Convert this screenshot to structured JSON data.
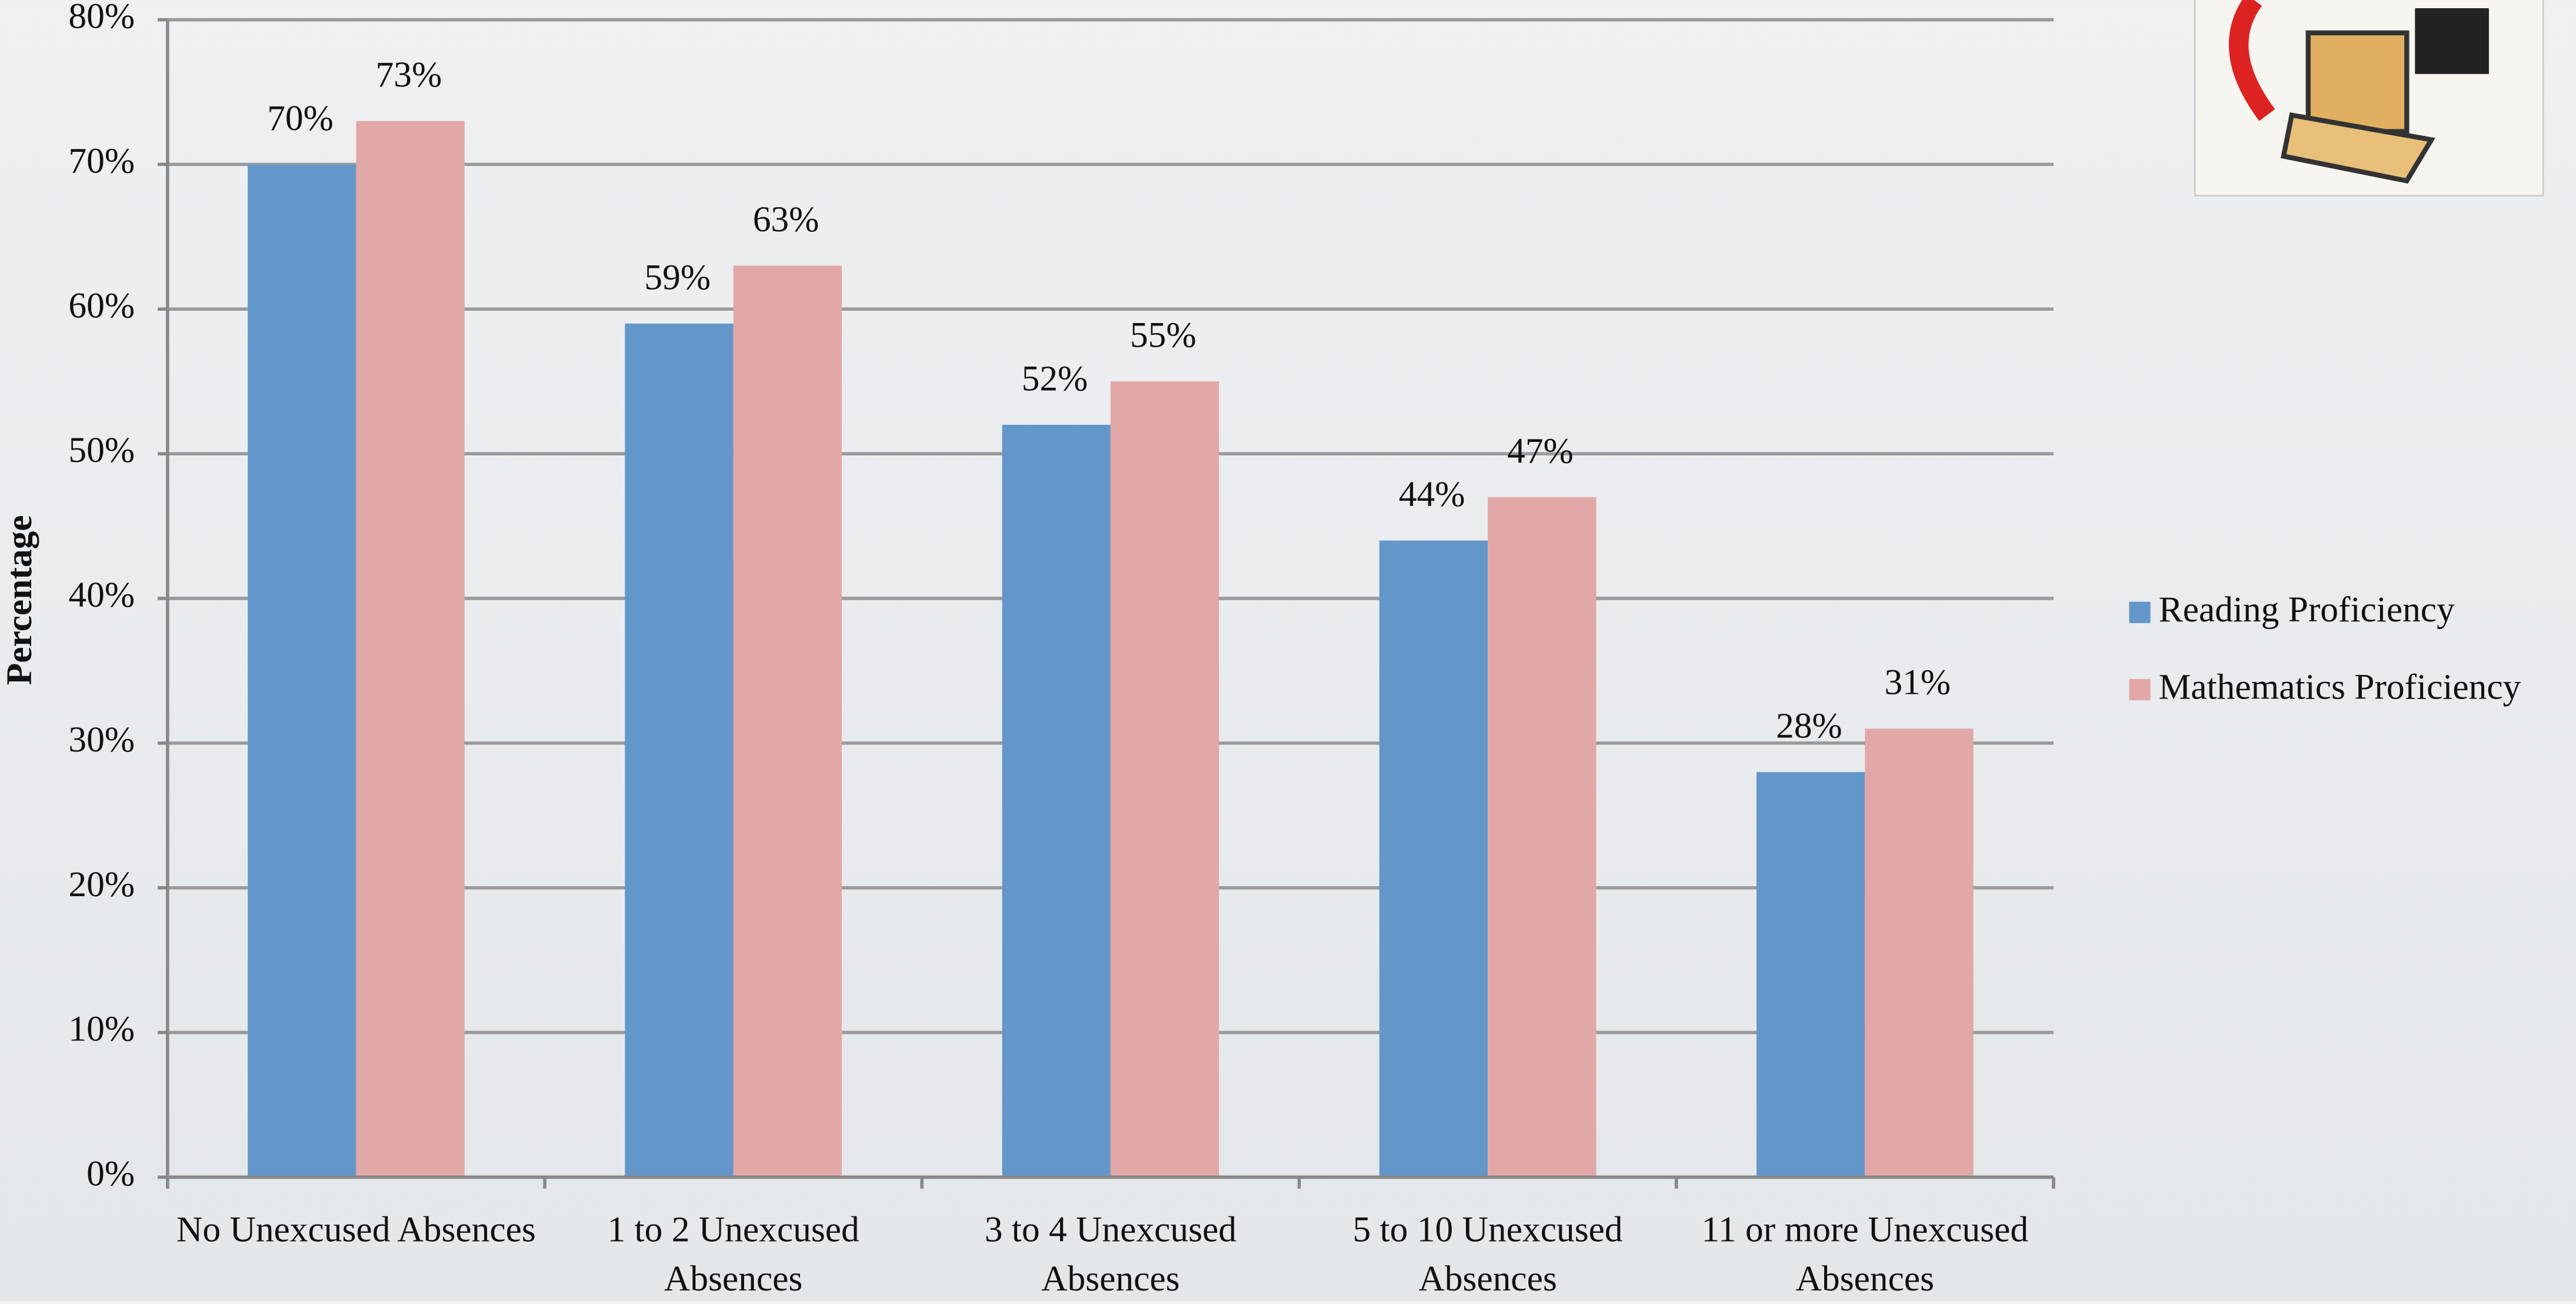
{
  "chart_data": {
    "type": "bar",
    "y_label": "Percentage",
    "categories": [
      "No Unexcused Absences",
      "1 to 2 Unexcused Absences",
      "3 to 4 Unexcused Absences",
      "5 to 10 Unexcused Absences",
      "11 or more Unexcused Absences"
    ],
    "series": [
      {
        "name": "Reading Proficiency",
        "color": "#6497c9",
        "values": [
          70,
          59,
          52,
          44,
          28
        ],
        "value_labels": [
          "70%",
          "59%",
          "52%",
          "44%",
          "28%"
        ]
      },
      {
        "name": "Mathematics Proficiency",
        "color": "#e2a8a7",
        "values": [
          73,
          63,
          55,
          47,
          31
        ],
        "value_labels": [
          "73%",
          "63%",
          "55%",
          "47%",
          "31%"
        ]
      }
    ],
    "ylim": [
      0,
      80
    ],
    "yticks": [
      {
        "value": 0,
        "label": "0%"
      },
      {
        "value": 10,
        "label": "10%"
      },
      {
        "value": 20,
        "label": "20%"
      },
      {
        "value": 30,
        "label": "30%"
      },
      {
        "value": 40,
        "label": "40%"
      },
      {
        "value": 50,
        "label": "50%"
      },
      {
        "value": 60,
        "label": "60%"
      },
      {
        "value": 70,
        "label": "70%"
      },
      {
        "value": 80,
        "label": "80%"
      }
    ],
    "grid": true,
    "legend": "right"
  }
}
